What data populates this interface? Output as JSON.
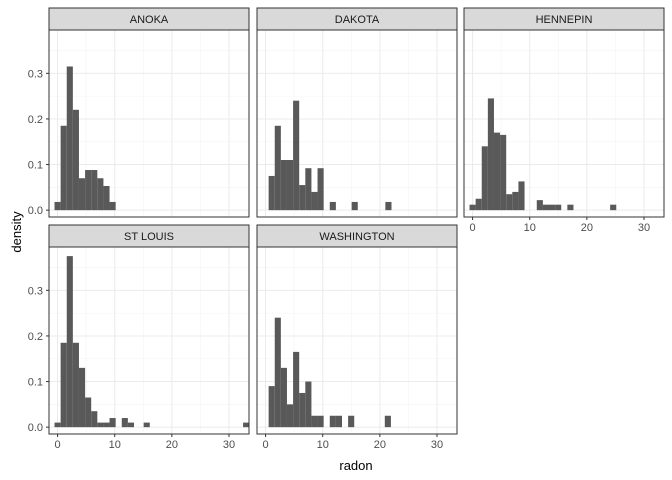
{
  "chart_data": {
    "type": "bar",
    "subtype": "faceted-histogram",
    "xlabel": "radon",
    "ylabel": "density",
    "xlim": [
      -1.5,
      33.5
    ],
    "ylim": [
      -0.015,
      0.395
    ],
    "x_ticks": [
      0,
      10,
      20,
      30
    ],
    "y_ticks": [
      0.0,
      0.1,
      0.2,
      0.3
    ],
    "x_tick_labels": [
      "0",
      "10",
      "20",
      "30"
    ],
    "y_tick_labels": [
      "0.0",
      "0.1",
      "0.2",
      "0.3"
    ],
    "bin_width": 1.07,
    "grid": true,
    "facet_layout": {
      "columns": 3,
      "rows": 2
    },
    "bar_color": "#595959",
    "panels": [
      {
        "name": "ANOKA",
        "bins": [
          {
            "x": 0.0,
            "y": 0.018
          },
          {
            "x": 1.07,
            "y": 0.185
          },
          {
            "x": 2.14,
            "y": 0.315
          },
          {
            "x": 3.21,
            "y": 0.22
          },
          {
            "x": 4.28,
            "y": 0.07
          },
          {
            "x": 5.35,
            "y": 0.088
          },
          {
            "x": 6.42,
            "y": 0.088
          },
          {
            "x": 7.49,
            "y": 0.07
          },
          {
            "x": 8.56,
            "y": 0.053
          },
          {
            "x": 9.63,
            "y": 0.018
          }
        ]
      },
      {
        "name": "DAKOTA",
        "bins": [
          {
            "x": 1.07,
            "y": 0.075
          },
          {
            "x": 2.14,
            "y": 0.185
          },
          {
            "x": 3.21,
            "y": 0.11
          },
          {
            "x": 4.28,
            "y": 0.11
          },
          {
            "x": 5.35,
            "y": 0.24
          },
          {
            "x": 6.42,
            "y": 0.055
          },
          {
            "x": 7.49,
            "y": 0.092
          },
          {
            "x": 8.56,
            "y": 0.04
          },
          {
            "x": 9.63,
            "y": 0.092
          },
          {
            "x": 11.77,
            "y": 0.018
          },
          {
            "x": 15.6,
            "y": 0.018
          },
          {
            "x": 21.5,
            "y": 0.018
          }
        ]
      },
      {
        "name": "HENNEPIN",
        "bins": [
          {
            "x": 0.0,
            "y": 0.012
          },
          {
            "x": 1.07,
            "y": 0.025
          },
          {
            "x": 2.14,
            "y": 0.14
          },
          {
            "x": 3.21,
            "y": 0.245
          },
          {
            "x": 4.28,
            "y": 0.17
          },
          {
            "x": 5.35,
            "y": 0.165
          },
          {
            "x": 6.42,
            "y": 0.035
          },
          {
            "x": 7.49,
            "y": 0.04
          },
          {
            "x": 8.56,
            "y": 0.063
          },
          {
            "x": 11.77,
            "y": 0.022
          },
          {
            "x": 12.84,
            "y": 0.012
          },
          {
            "x": 13.91,
            "y": 0.012
          },
          {
            "x": 14.98,
            "y": 0.012
          },
          {
            "x": 17.12,
            "y": 0.012
          },
          {
            "x": 24.61,
            "y": 0.012
          }
        ]
      },
      {
        "name": "ST LOUIS",
        "bins": [
          {
            "x": 0.0,
            "y": 0.01
          },
          {
            "x": 1.07,
            "y": 0.185
          },
          {
            "x": 2.14,
            "y": 0.375
          },
          {
            "x": 3.21,
            "y": 0.185
          },
          {
            "x": 4.28,
            "y": 0.13
          },
          {
            "x": 5.35,
            "y": 0.065
          },
          {
            "x": 6.42,
            "y": 0.035
          },
          {
            "x": 7.49,
            "y": 0.01
          },
          {
            "x": 8.56,
            "y": 0.01
          },
          {
            "x": 9.63,
            "y": 0.02
          },
          {
            "x": 11.77,
            "y": 0.02
          },
          {
            "x": 12.84,
            "y": 0.01
          },
          {
            "x": 15.6,
            "y": 0.01
          },
          {
            "x": 33.0,
            "y": 0.01
          }
        ]
      },
      {
        "name": "WASHINGTON",
        "bins": [
          {
            "x": 1.07,
            "y": 0.09
          },
          {
            "x": 2.14,
            "y": 0.24
          },
          {
            "x": 3.21,
            "y": 0.13
          },
          {
            "x": 4.28,
            "y": 0.05
          },
          {
            "x": 5.35,
            "y": 0.165
          },
          {
            "x": 6.42,
            "y": 0.075
          },
          {
            "x": 7.49,
            "y": 0.1
          },
          {
            "x": 8.56,
            "y": 0.025
          },
          {
            "x": 9.63,
            "y": 0.025
          },
          {
            "x": 11.77,
            "y": 0.025
          },
          {
            "x": 12.84,
            "y": 0.025
          },
          {
            "x": 14.98,
            "y": 0.025
          },
          {
            "x": 21.4,
            "y": 0.025
          }
        ]
      }
    ]
  }
}
